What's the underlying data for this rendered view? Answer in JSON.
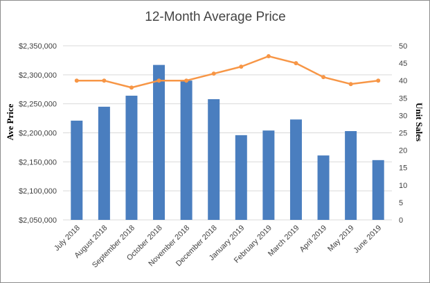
{
  "chart_data": {
    "type": "bar",
    "title": "12-Month Average Price",
    "xlabel": "",
    "ylabel": "Ave Price",
    "y2label": "Unit Sales",
    "categories": [
      "July 2018",
      "August 2018",
      "September 2018",
      "October 2018",
      "November 2018",
      "December 2018",
      "January 2019",
      "February 2019",
      "March 2019",
      "April 2019",
      "May 2019",
      "June 2019"
    ],
    "series": [
      {
        "type": "bar",
        "axis": "left",
        "color": "#4a7ebf",
        "values": [
          2221000,
          2245000,
          2264000,
          2317000,
          2290000,
          2258000,
          2196000,
          2204000,
          2223000,
          2161000,
          2203000,
          2153000
        ]
      },
      {
        "type": "line",
        "axis": "right",
        "color": "#f79646",
        "values": [
          40,
          40,
          38,
          40,
          40,
          42,
          44,
          47,
          45,
          41,
          39,
          40
        ]
      }
    ],
    "ylim": [
      2050000,
      2350000
    ],
    "yticks": [
      "$2,050,000",
      "$2,100,000",
      "$2,150,000",
      "$2,200,000",
      "$2,250,000",
      "$2,300,000",
      "$2,350,000"
    ],
    "y2lim": [
      0,
      50
    ],
    "y2ticks": [
      "0",
      "5",
      "10",
      "15",
      "20",
      "25",
      "30",
      "35",
      "40",
      "45",
      "50"
    ],
    "grid": true,
    "legend": "none"
  }
}
